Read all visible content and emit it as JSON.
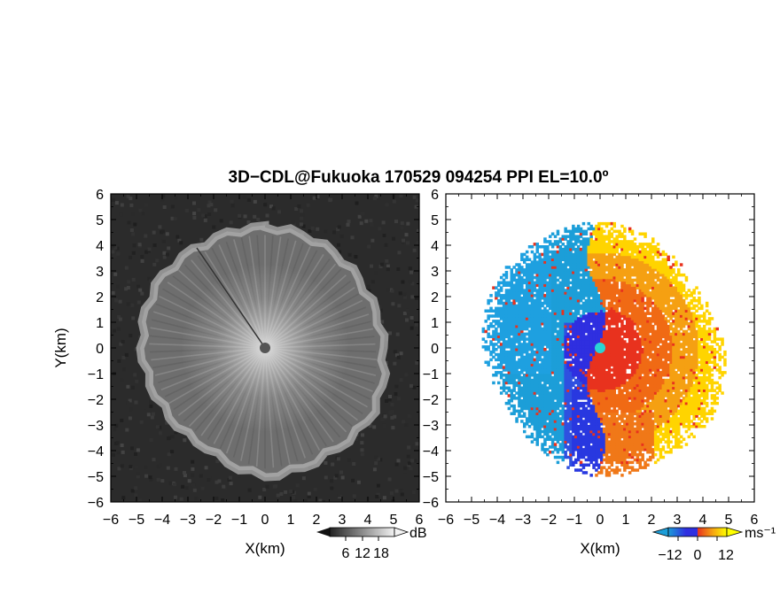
{
  "title": "3D−CDL@Fukuoka 170529 094254 PPI EL=10.0º",
  "chart_data": [
    {
      "type": "heatmap",
      "panel": "reflectivity",
      "xlabel": "X(km)",
      "ylabel": "Y(km)",
      "xlim": [
        -6,
        6
      ],
      "ylim": [
        -6,
        6
      ],
      "xticks": [
        "−6",
        "−5",
        "−4",
        "−3",
        "−2",
        "−1",
        "0",
        "1",
        "2",
        "3",
        "4",
        "5",
        "6"
      ],
      "yticks": [
        "6",
        "5",
        "4",
        "3",
        "2",
        "1",
        "0",
        "−1",
        "−2",
        "−3",
        "−4",
        "−5",
        "−6"
      ],
      "colorbar": {
        "label": "dB",
        "ticks": [
          "6",
          "12",
          "18"
        ],
        "range": [
          0,
          24
        ],
        "colors": [
          "#222222",
          "#f2f2f2"
        ]
      },
      "echo_boundary_km": [
        [
          0,
          4.7
        ],
        [
          30,
          4.6
        ],
        [
          60,
          4.5
        ],
        [
          90,
          4.6
        ],
        [
          120,
          4.9
        ],
        [
          150,
          4.8
        ],
        [
          180,
          5.0
        ],
        [
          210,
          4.5
        ],
        [
          240,
          4.6
        ],
        [
          270,
          4.8
        ],
        [
          300,
          4.9
        ],
        [
          330,
          4.7
        ]
      ]
    },
    {
      "type": "heatmap",
      "panel": "doppler_velocity",
      "xlabel": "X(km)",
      "ylabel": "Y(km)",
      "xlim": [
        -6,
        6
      ],
      "ylim": [
        -6,
        6
      ],
      "xticks": [
        "−6",
        "−5",
        "−4",
        "−3",
        "−2",
        "−1",
        "0",
        "1",
        "2",
        "3",
        "4",
        "5",
        "6"
      ],
      "yticks": [
        "6",
        "5",
        "4",
        "3",
        "2",
        "1",
        "0",
        "−1",
        "−2",
        "−3",
        "−4",
        "−5",
        "−6"
      ],
      "colorbar": {
        "label": "ms⁻¹",
        "ticks": [
          "−12",
          "0",
          "12"
        ],
        "range": [
          -18,
          18
        ],
        "colors": [
          "#1c9ed8",
          "#2f2fe0",
          "#e8321e",
          "#f5a012",
          "#ffff00"
        ]
      },
      "echo_boundary_km": [
        [
          0,
          5.0
        ],
        [
          30,
          4.8
        ],
        [
          60,
          4.4
        ],
        [
          90,
          4.8
        ],
        [
          120,
          5.1
        ],
        [
          150,
          4.9
        ],
        [
          180,
          5.0
        ],
        [
          210,
          4.6
        ],
        [
          240,
          4.3
        ],
        [
          270,
          4.6
        ],
        [
          300,
          4.9
        ],
        [
          330,
          4.9
        ]
      ]
    }
  ]
}
